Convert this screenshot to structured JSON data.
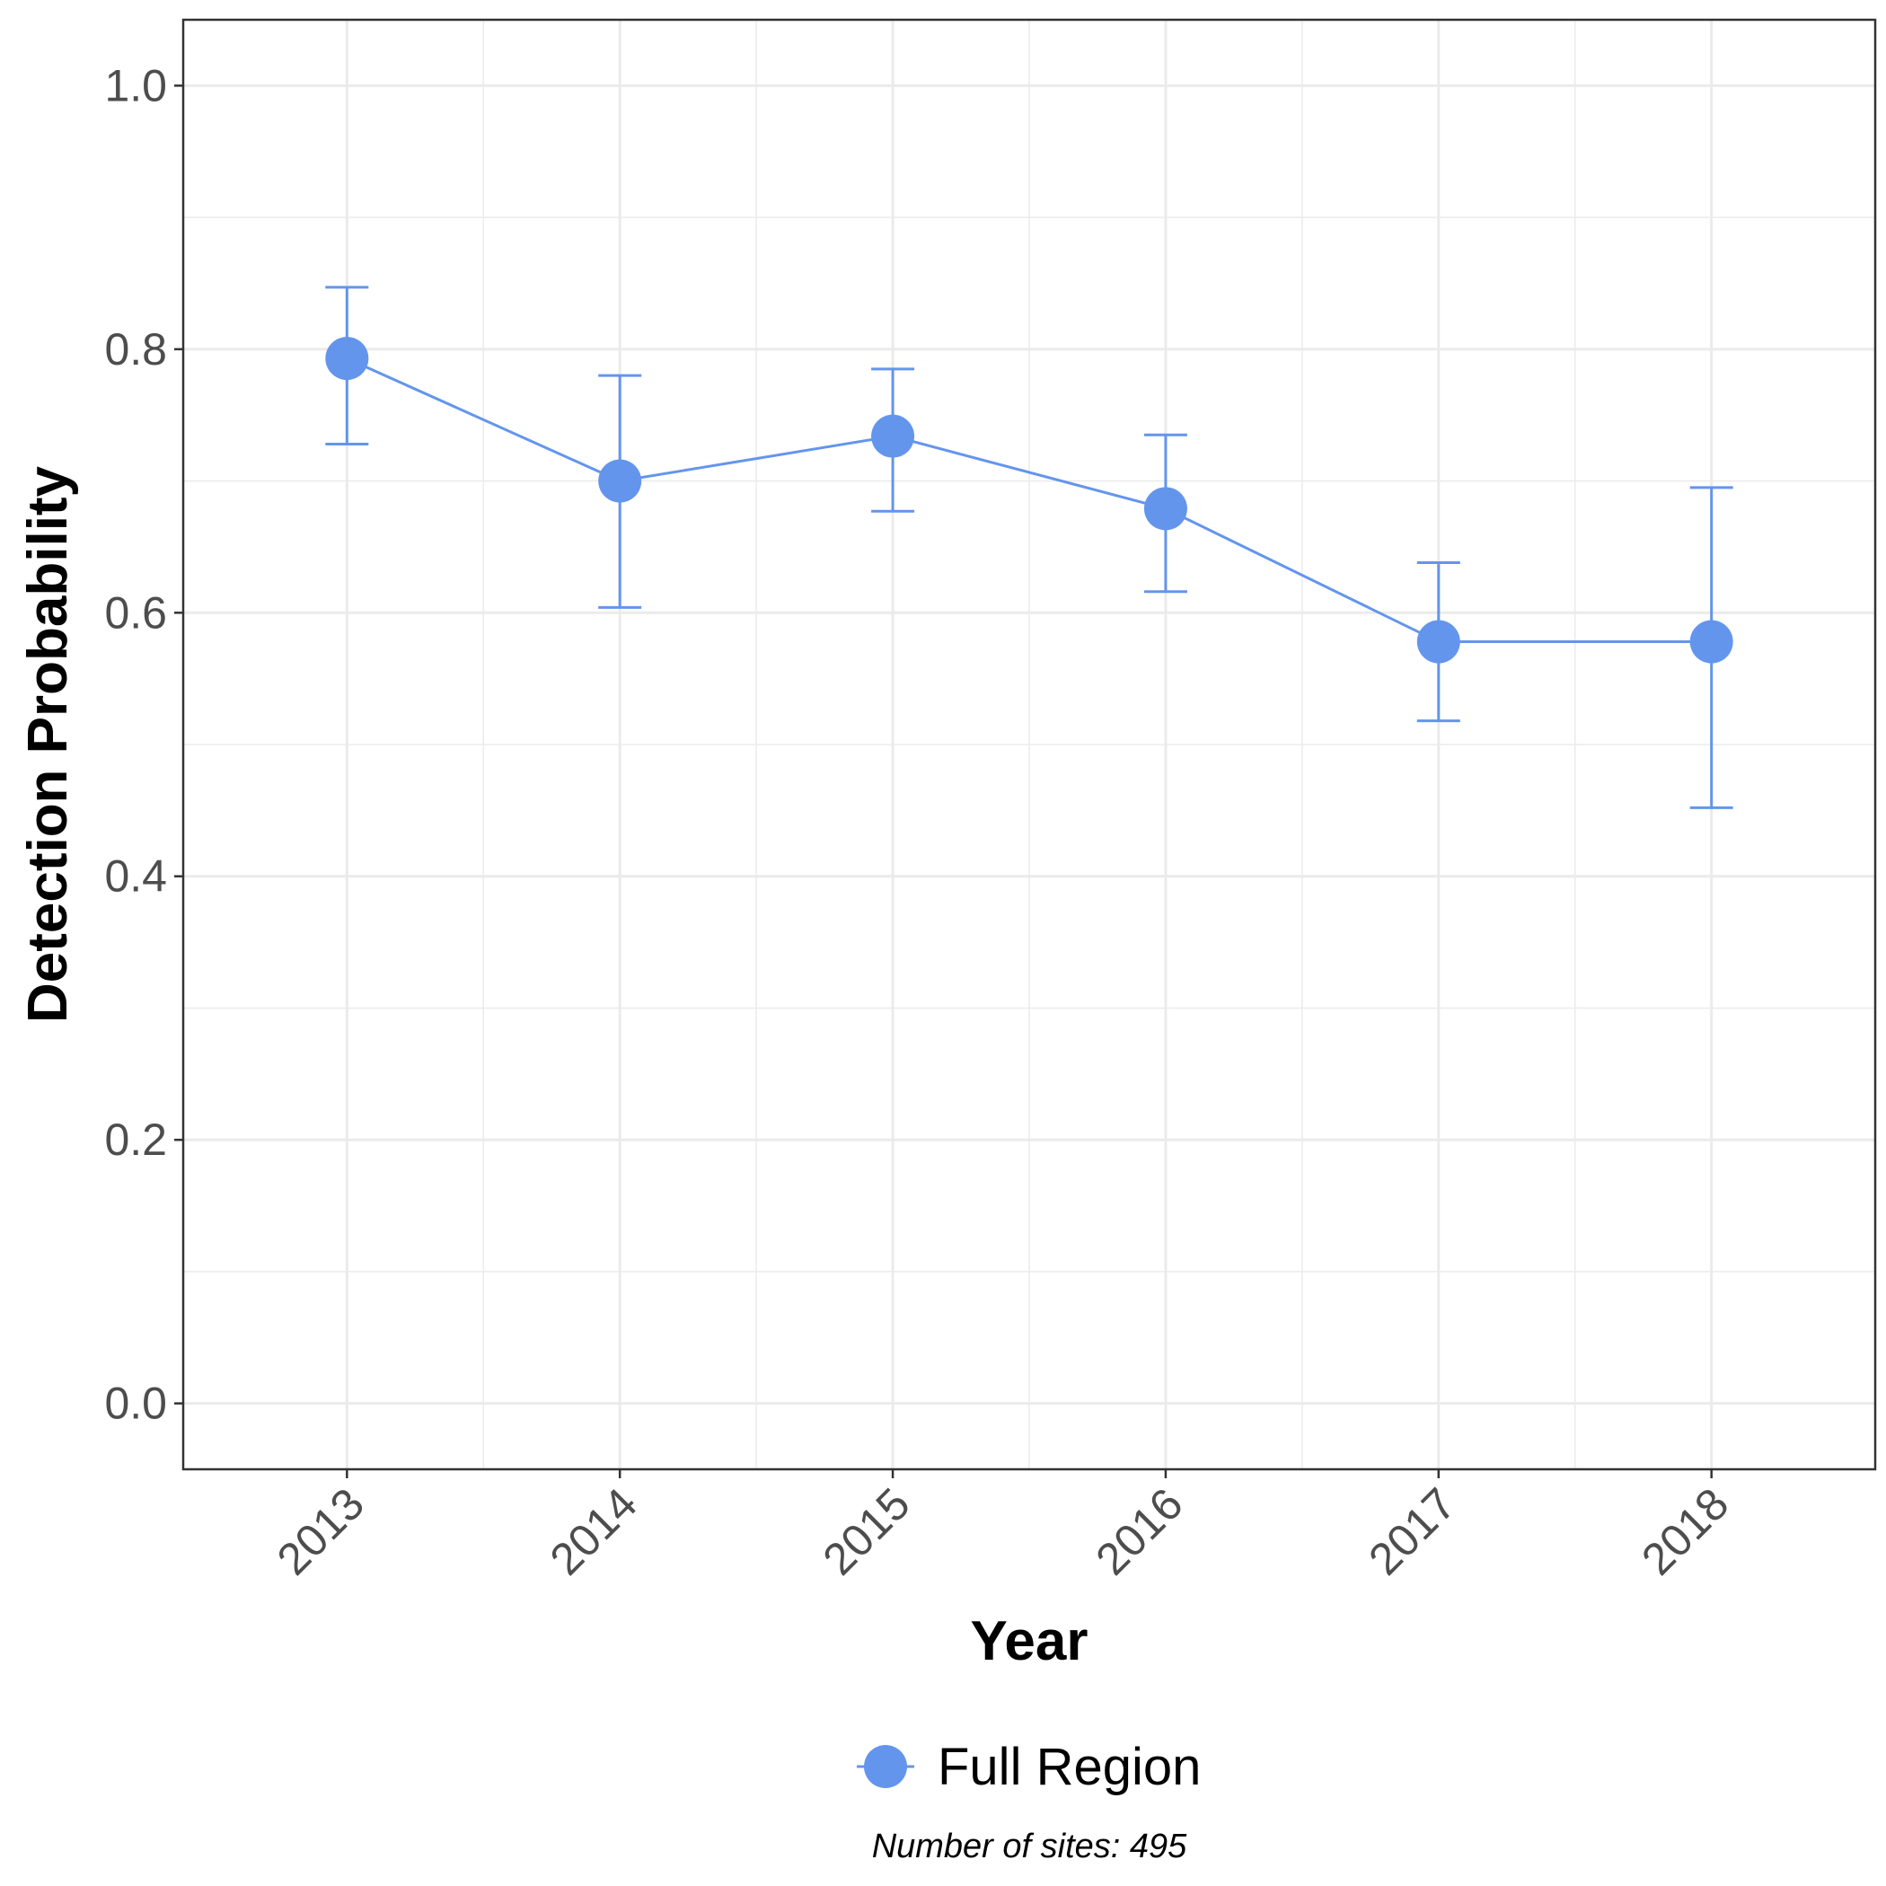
{
  "chart_data": {
    "type": "line",
    "xlabel": "Year",
    "ylabel": "Detection Probability",
    "categories": [
      "2013",
      "2014",
      "2015",
      "2016",
      "2017",
      "2018"
    ],
    "ylim": [
      -0.05,
      1.05
    ],
    "yticks": [
      "0.0",
      "0.2",
      "0.4",
      "0.6",
      "0.8",
      "1.0"
    ],
    "grid": true,
    "legend_position": "bottom",
    "series": [
      {
        "name": "Full Region",
        "color": "#6495ED",
        "values": [
          0.793,
          0.7,
          0.734,
          0.679,
          0.578,
          0.578
        ],
        "lower": [
          0.728,
          0.604,
          0.677,
          0.616,
          0.518,
          0.452
        ],
        "upper": [
          0.847,
          0.78,
          0.785,
          0.735,
          0.638,
          0.695
        ]
      }
    ],
    "caption": "Number of sites: 495"
  }
}
